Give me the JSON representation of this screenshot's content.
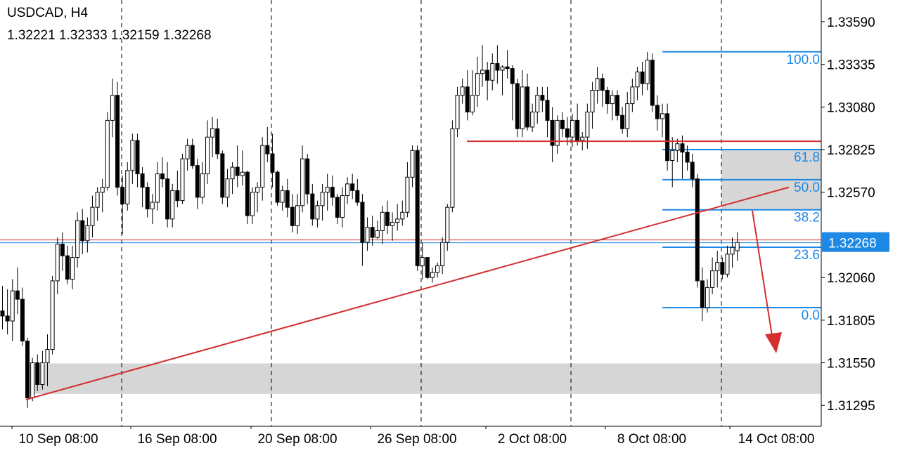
{
  "header": {
    "symbol_timeframe": "USDCAD, H4",
    "ohlc": "1.32221 1.32333 1.32159 1.32268"
  },
  "colors": {
    "bull_body": "#ffffff",
    "bear_body": "#000000",
    "candle_outline": "#000000",
    "grid_dash": "#000000",
    "fib": "#1e88e5",
    "trend": "#d32f2f",
    "zone": "#d6d6d6",
    "bid_line": "#d32f2f",
    "ask_line": "#1e88e5",
    "price_label_bg": "#1e88e5",
    "price_label_text": "#ffffff"
  },
  "chart_data": {
    "type": "candlestick",
    "symbol": "USDCAD",
    "timeframe": "H4",
    "ylim": [
      1.3117,
      1.3372
    ],
    "y_ticks": [
      "1.33590",
      "1.33335",
      "1.33080",
      "1.32825",
      "1.32570",
      "1.32060",
      "1.31805",
      "1.31550",
      "1.31295"
    ],
    "x_labels": [
      "10 Sep 08:00",
      "16 Sep 08:00",
      "20 Sep 08:00",
      "26 Sep 08:00",
      "2 Oct 08:00",
      "8 Oct 08:00",
      "14 Oct 08:00"
    ],
    "current_price": "1.32268",
    "fibonacci": {
      "high": 1.3341,
      "low": 1.3188,
      "levels": [
        {
          "label": "100.0",
          "price": 1.3341
        },
        {
          "label": "61.8",
          "price": 1.32825
        },
        {
          "label": "50.0",
          "price": 1.32645
        },
        {
          "label": "38.2",
          "price": 1.32465
        },
        {
          "label": "23.6",
          "price": 1.32241
        },
        {
          "label": "0.0",
          "price": 1.3188
        }
      ]
    },
    "resistance_level": 1.32875,
    "support_zone": [
      1.31364,
      1.31546
    ],
    "resistance_zone": [
      1.32465,
      1.32825
    ],
    "trendline": [
      [
        1.3133
      ],
      [
        1.326
      ]
    ],
    "candles": [
      [
        1.3186,
        1.3201,
        1.3175,
        1.3183
      ],
      [
        1.3183,
        1.3199,
        1.3172,
        1.318
      ],
      [
        1.318,
        1.3205,
        1.3168,
        1.3198
      ],
      [
        1.3198,
        1.3212,
        1.3184,
        1.3193
      ],
      [
        1.3193,
        1.32,
        1.3165,
        1.3168
      ],
      [
        1.3168,
        1.317,
        1.3128,
        1.3134
      ],
      [
        1.3134,
        1.3158,
        1.3132,
        1.3155
      ],
      [
        1.3155,
        1.316,
        1.3138,
        1.3142
      ],
      [
        1.3142,
        1.3162,
        1.3139,
        1.3155
      ],
      [
        1.3155,
        1.3172,
        1.3141,
        1.3163
      ],
      [
        1.3163,
        1.3207,
        1.316,
        1.3204
      ],
      [
        1.3204,
        1.323,
        1.3196,
        1.3226
      ],
      [
        1.3226,
        1.3233,
        1.321,
        1.3219
      ],
      [
        1.3219,
        1.3225,
        1.3202,
        1.3205
      ],
      [
        1.3205,
        1.3225,
        1.3199,
        1.3218
      ],
      [
        1.3218,
        1.3245,
        1.3212,
        1.324
      ],
      [
        1.324,
        1.3247,
        1.322,
        1.3228
      ],
      [
        1.3228,
        1.3242,
        1.3221,
        1.3237
      ],
      [
        1.3237,
        1.3255,
        1.323,
        1.3248
      ],
      [
        1.3248,
        1.326,
        1.324,
        1.3257
      ],
      [
        1.3257,
        1.3265,
        1.3245,
        1.326
      ],
      [
        1.326,
        1.3305,
        1.3258,
        1.33
      ],
      [
        1.33,
        1.3325,
        1.329,
        1.3315
      ],
      [
        1.3315,
        1.3323,
        1.3255,
        1.326
      ],
      [
        1.326,
        1.3267,
        1.3232,
        1.325
      ],
      [
        1.325,
        1.3275,
        1.3246,
        1.327
      ],
      [
        1.327,
        1.3292,
        1.3262,
        1.3288
      ],
      [
        1.3288,
        1.3292,
        1.326,
        1.3268
      ],
      [
        1.3268,
        1.3272,
        1.3248,
        1.326
      ],
      [
        1.326,
        1.3263,
        1.3242,
        1.3247
      ],
      [
        1.3247,
        1.3256,
        1.3238,
        1.3251
      ],
      [
        1.3251,
        1.3275,
        1.3246,
        1.3268
      ],
      [
        1.3268,
        1.3278,
        1.326,
        1.3265
      ],
      [
        1.3265,
        1.3275,
        1.3236,
        1.3241
      ],
      [
        1.3241,
        1.3262,
        1.3236,
        1.3258
      ],
      [
        1.3258,
        1.327,
        1.3248,
        1.3252
      ],
      [
        1.3252,
        1.328,
        1.325,
        1.3277
      ],
      [
        1.3277,
        1.3289,
        1.327,
        1.3285
      ],
      [
        1.3285,
        1.3289,
        1.3271,
        1.3273
      ],
      [
        1.3273,
        1.3277,
        1.3247,
        1.3254
      ],
      [
        1.3254,
        1.3275,
        1.325,
        1.3268
      ],
      [
        1.3268,
        1.33,
        1.3262,
        1.329
      ],
      [
        1.329,
        1.3302,
        1.3278,
        1.3295
      ],
      [
        1.3295,
        1.3301,
        1.3277,
        1.328
      ],
      [
        1.328,
        1.3282,
        1.325,
        1.3254
      ],
      [
        1.3254,
        1.3271,
        1.3248,
        1.3265
      ],
      [
        1.3265,
        1.3275,
        1.3256,
        1.3272
      ],
      [
        1.3272,
        1.3285,
        1.326,
        1.3267
      ],
      [
        1.3267,
        1.3282,
        1.3261,
        1.3269
      ],
      [
        1.3269,
        1.327,
        1.3238,
        1.3243
      ],
      [
        1.3243,
        1.326,
        1.3238,
        1.3257
      ],
      [
        1.3257,
        1.3263,
        1.3245,
        1.326
      ],
      [
        1.326,
        1.329,
        1.3252,
        1.3285
      ],
      [
        1.3285,
        1.3296,
        1.3275,
        1.328
      ],
      [
        1.328,
        1.3292,
        1.326,
        1.3269
      ],
      [
        1.3269,
        1.327,
        1.3249,
        1.3251
      ],
      [
        1.3251,
        1.3261,
        1.3246,
        1.3258
      ],
      [
        1.3258,
        1.3265,
        1.3242,
        1.3248
      ],
      [
        1.3248,
        1.3256,
        1.3233,
        1.3237
      ],
      [
        1.3237,
        1.3256,
        1.3232,
        1.3249
      ],
      [
        1.3249,
        1.3285,
        1.3245,
        1.3277
      ],
      [
        1.3277,
        1.328,
        1.325,
        1.3256
      ],
      [
        1.3256,
        1.3262,
        1.3237,
        1.3241
      ],
      [
        1.3241,
        1.3252,
        1.3236,
        1.3249
      ],
      [
        1.3249,
        1.3262,
        1.324,
        1.3257
      ],
      [
        1.3257,
        1.3268,
        1.3246,
        1.326
      ],
      [
        1.326,
        1.3267,
        1.3249,
        1.3254
      ],
      [
        1.3254,
        1.3256,
        1.3238,
        1.3242
      ],
      [
        1.3242,
        1.326,
        1.3236,
        1.3255
      ],
      [
        1.3255,
        1.3266,
        1.325,
        1.3262
      ],
      [
        1.3262,
        1.3268,
        1.3253,
        1.3258
      ],
      [
        1.3258,
        1.3265,
        1.3249,
        1.3251
      ],
      [
        1.3251,
        1.3256,
        1.3213,
        1.3227
      ],
      [
        1.3227,
        1.3242,
        1.3222,
        1.3236
      ],
      [
        1.3236,
        1.3243,
        1.3225,
        1.323
      ],
      [
        1.323,
        1.324,
        1.3229,
        1.3234
      ],
      [
        1.3234,
        1.3249,
        1.3226,
        1.3245
      ],
      [
        1.3245,
        1.3252,
        1.3232,
        1.3237
      ],
      [
        1.3237,
        1.3245,
        1.3228,
        1.3239
      ],
      [
        1.3239,
        1.325,
        1.3234,
        1.3241
      ],
      [
        1.3241,
        1.3252,
        1.3237,
        1.3245
      ],
      [
        1.3245,
        1.3275,
        1.3242,
        1.3266
      ],
      [
        1.3266,
        1.3285,
        1.326,
        1.3282
      ],
      [
        1.3282,
        1.3285,
        1.321,
        1.3213
      ],
      [
        1.3213,
        1.3227,
        1.3205,
        1.3218
      ],
      [
        1.3218,
        1.3218,
        1.3205,
        1.3206
      ],
      [
        1.3206,
        1.3212,
        1.3203,
        1.3209
      ],
      [
        1.3209,
        1.3215,
        1.3206,
        1.3213
      ],
      [
        1.3213,
        1.323,
        1.3208,
        1.3227
      ],
      [
        1.3227,
        1.325,
        1.3222,
        1.3248
      ],
      [
        1.3248,
        1.33,
        1.3245,
        1.3295
      ],
      [
        1.3295,
        1.332,
        1.329,
        1.3315
      ],
      [
        1.3315,
        1.3325,
        1.331,
        1.332
      ],
      [
        1.332,
        1.333,
        1.33,
        1.3305
      ],
      [
        1.3305,
        1.333,
        1.3303,
        1.3315
      ],
      [
        1.3315,
        1.3338,
        1.3308,
        1.3328
      ],
      [
        1.3328,
        1.3345,
        1.332,
        1.333
      ],
      [
        1.333,
        1.3335,
        1.3312,
        1.3324
      ],
      [
        1.3324,
        1.334,
        1.3318,
        1.3334
      ],
      [
        1.3334,
        1.3345,
        1.3322,
        1.333
      ],
      [
        1.333,
        1.3333,
        1.3315,
        1.3332
      ],
      [
        1.3332,
        1.3342,
        1.3325,
        1.3331
      ],
      [
        1.3331,
        1.3333,
        1.33,
        1.3322
      ],
      [
        1.3322,
        1.3325,
        1.329,
        1.3295
      ],
      [
        1.3295,
        1.333,
        1.329,
        1.332
      ],
      [
        1.332,
        1.3328,
        1.3294,
        1.3296
      ],
      [
        1.3296,
        1.331,
        1.3293,
        1.3305
      ],
      [
        1.3305,
        1.332,
        1.3298,
        1.3315
      ],
      [
        1.3315,
        1.332,
        1.3305,
        1.3312
      ],
      [
        1.3312,
        1.332,
        1.329,
        1.33
      ],
      [
        1.33,
        1.3308,
        1.3275,
        1.3285
      ],
      [
        1.3285,
        1.3303,
        1.328,
        1.33
      ],
      [
        1.33,
        1.3305,
        1.329,
        1.3295
      ],
      [
        1.3295,
        1.3302,
        1.3285,
        1.329
      ],
      [
        1.329,
        1.3304,
        1.3284,
        1.33
      ],
      [
        1.33,
        1.331,
        1.3285,
        1.3288
      ],
      [
        1.3288,
        1.3293,
        1.3282,
        1.329
      ],
      [
        1.329,
        1.331,
        1.3283,
        1.3305
      ],
      [
        1.3305,
        1.3323,
        1.3295,
        1.3318
      ],
      [
        1.3318,
        1.3332,
        1.331,
        1.3325
      ],
      [
        1.3325,
        1.3328,
        1.3308,
        1.3318
      ],
      [
        1.3318,
        1.332,
        1.3304,
        1.331
      ],
      [
        1.331,
        1.3318,
        1.33,
        1.3315
      ],
      [
        1.3315,
        1.3318,
        1.33,
        1.3303
      ],
      [
        1.3303,
        1.3308,
        1.3292,
        1.3295
      ],
      [
        1.3295,
        1.3317,
        1.329,
        1.331
      ],
      [
        1.331,
        1.3325,
        1.3305,
        1.332
      ],
      [
        1.332,
        1.3332,
        1.3312,
        1.3329
      ],
      [
        1.3329,
        1.3335,
        1.3315,
        1.3322
      ],
      [
        1.3322,
        1.3341,
        1.3318,
        1.3336
      ],
      [
        1.3336,
        1.334,
        1.3305,
        1.3309
      ],
      [
        1.3309,
        1.3315,
        1.3294,
        1.3301
      ],
      [
        1.3301,
        1.331,
        1.329,
        1.3304
      ],
      [
        1.3304,
        1.331,
        1.327,
        1.3276
      ],
      [
        1.3276,
        1.329,
        1.326,
        1.3282
      ],
      [
        1.3282,
        1.3289,
        1.3275,
        1.3286
      ],
      [
        1.3286,
        1.3291,
        1.3265,
        1.3281
      ],
      [
        1.3281,
        1.3285,
        1.327,
        1.3275
      ],
      [
        1.3275,
        1.328,
        1.326,
        1.3265
      ],
      [
        1.3265,
        1.3268,
        1.32,
        1.3204
      ],
      [
        1.3204,
        1.3212,
        1.318,
        1.3188
      ],
      [
        1.3188,
        1.3205,
        1.3185,
        1.32
      ],
      [
        1.32,
        1.3218,
        1.3196,
        1.321
      ],
      [
        1.321,
        1.3222,
        1.32,
        1.3215
      ],
      [
        1.3215,
        1.3218,
        1.3205,
        1.3208
      ],
      [
        1.3208,
        1.3225,
        1.3206,
        1.322
      ],
      [
        1.322,
        1.323,
        1.3212,
        1.3224
      ],
      [
        1.3222,
        1.3233,
        1.3216,
        1.3227
      ]
    ]
  }
}
